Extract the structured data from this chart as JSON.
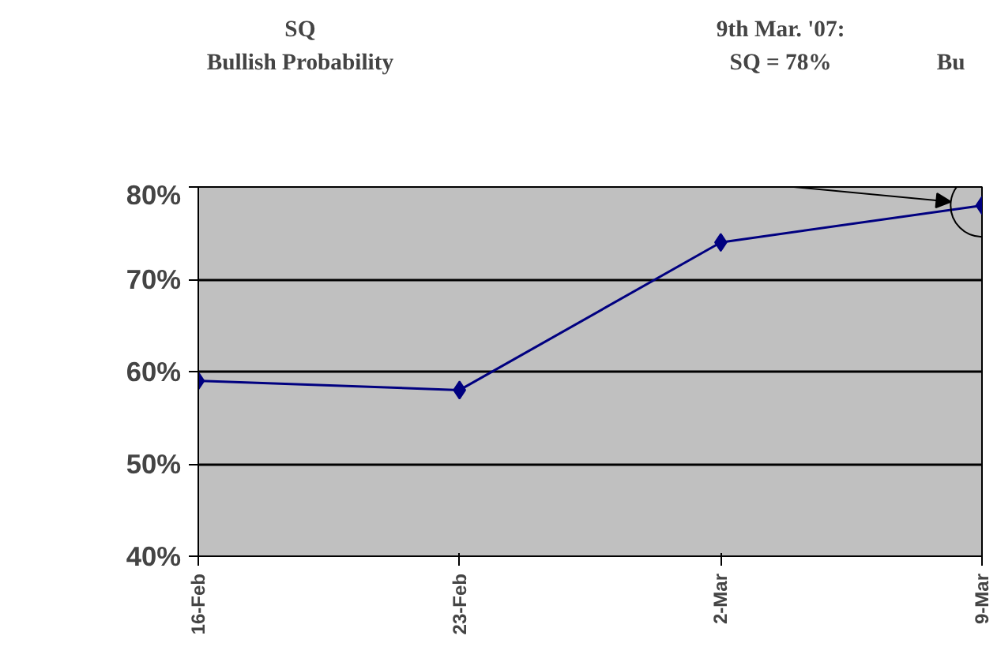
{
  "chart_data": {
    "type": "line",
    "title": "SQ\nBullish Probability",
    "categories": [
      "16-Feb",
      "23-Feb",
      "2-Mar",
      "9-Mar"
    ],
    "series": [
      {
        "color": "#000080",
        "values": [
          59,
          58,
          74,
          78
        ]
      }
    ],
    "ylim": [
      40,
      80
    ],
    "yticks": [
      {
        "value": 40,
        "label": "40%"
      },
      {
        "value": 50,
        "label": "50%"
      },
      {
        "value": 60,
        "label": "60%"
      },
      {
        "value": 70,
        "label": "70%"
      },
      {
        "value": 80,
        "label": "80%"
      }
    ],
    "grid": "y",
    "marker": "diamond",
    "line_style": "solid",
    "annotations": [
      "9th Mar. '07:\nSQ = 78%",
      "Bu"
    ]
  }
}
